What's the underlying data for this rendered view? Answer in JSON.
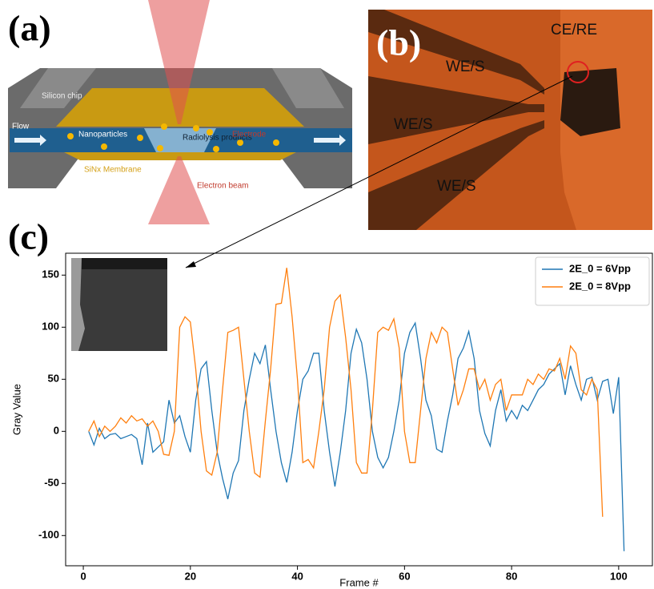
{
  "panel_a": {
    "label": "(a)",
    "silicon_chip": "Silicon chip",
    "flow": "Flow",
    "nanoparticles": "Nanoparticles",
    "radiolysis": "Radiolysis products",
    "electrode": "Electrode",
    "membrane": "SiNx Membrane",
    "beam": "Electron beam"
  },
  "panel_b": {
    "label": "(b)",
    "ce_re": "CE/RE",
    "we_s_1": "WE/S",
    "we_s_2": "WE/S",
    "we_s_3": "WE/S"
  },
  "panel_c": {
    "label": "(c)"
  },
  "chart_data": {
    "type": "line",
    "xlabel": "Frame #",
    "ylabel": "Gray Value",
    "x": [
      1,
      2,
      3,
      4,
      5,
      6,
      7,
      8,
      9,
      10,
      11,
      12,
      13,
      14,
      15,
      16,
      17,
      18,
      19,
      20,
      21,
      22,
      23,
      24,
      25,
      26,
      27,
      28,
      29,
      30,
      31,
      32,
      33,
      34,
      35,
      36,
      37,
      38,
      39,
      40,
      41,
      42,
      43,
      44,
      45,
      46,
      47,
      48,
      49,
      50,
      51,
      52,
      53,
      54,
      55,
      56,
      57,
      58,
      59,
      60,
      61,
      62,
      63,
      64,
      65,
      66,
      67,
      68,
      69,
      70,
      71,
      72,
      73,
      74,
      75,
      76,
      77,
      78,
      79,
      80,
      81,
      82,
      83,
      84,
      85,
      86,
      87,
      88,
      89,
      90,
      91,
      92,
      93,
      94,
      95,
      96,
      97,
      98,
      99,
      100,
      101
    ],
    "series": [
      {
        "name": "2E_0 = 6Vpp",
        "color": "#1f77b4",
        "values": [
          0,
          -13,
          3,
          -7,
          -3,
          -2,
          -7,
          -5,
          -3,
          -7,
          -32,
          8,
          -20,
          -15,
          -10,
          30,
          8,
          15,
          -5,
          -20,
          30,
          60,
          67,
          20,
          -20,
          -45,
          -65,
          -40,
          -28,
          20,
          50,
          75,
          65,
          83,
          40,
          0,
          -30,
          -49,
          -20,
          20,
          50,
          58,
          75,
          75,
          20,
          -20,
          -53,
          -20,
          20,
          75,
          98,
          85,
          50,
          0,
          -25,
          -35,
          -25,
          0,
          30,
          75,
          95,
          104,
          70,
          30,
          15,
          -17,
          -20,
          10,
          35,
          70,
          80,
          96,
          70,
          20,
          -2,
          -14,
          20,
          40,
          10,
          20,
          12,
          25,
          20,
          30,
          40,
          45,
          55,
          60,
          65,
          35,
          63,
          45,
          30,
          50,
          52,
          30,
          48,
          50,
          17,
          52,
          -115
        ]
      },
      {
        "name": "2E_0 = 8Vpp",
        "color": "#ff7f0e",
        "values": [
          0,
          10,
          -5,
          5,
          0,
          5,
          13,
          8,
          15,
          10,
          12,
          5,
          10,
          0,
          -22,
          -23,
          0,
          100,
          110,
          105,
          60,
          0,
          -38,
          -42,
          -20,
          40,
          95,
          97,
          100,
          50,
          0,
          -40,
          -44,
          10,
          60,
          122,
          123,
          157,
          110,
          50,
          -30,
          -27,
          -35,
          0,
          40,
          100,
          125,
          131,
          90,
          40,
          -30,
          -40,
          -40,
          20,
          95,
          100,
          97,
          108,
          80,
          0,
          -30,
          -30,
          20,
          70,
          95,
          85,
          100,
          95,
          60,
          25,
          40,
          60,
          60,
          40,
          50,
          30,
          45,
          50,
          20,
          35,
          35,
          35,
          50,
          45,
          55,
          50,
          60,
          58,
          70,
          50,
          82,
          75,
          40,
          35,
          50,
          40,
          -82,
          null,
          null,
          null,
          null
        ]
      }
    ],
    "xlim": [
      -3.3,
      106.3
    ],
    "ylim": [
      -129,
      171
    ],
    "xticks": [
      0,
      20,
      40,
      60,
      80,
      100
    ],
    "yticks": [
      -100,
      -50,
      0,
      50,
      100,
      150
    ],
    "grid": false,
    "legend": "upper right"
  }
}
